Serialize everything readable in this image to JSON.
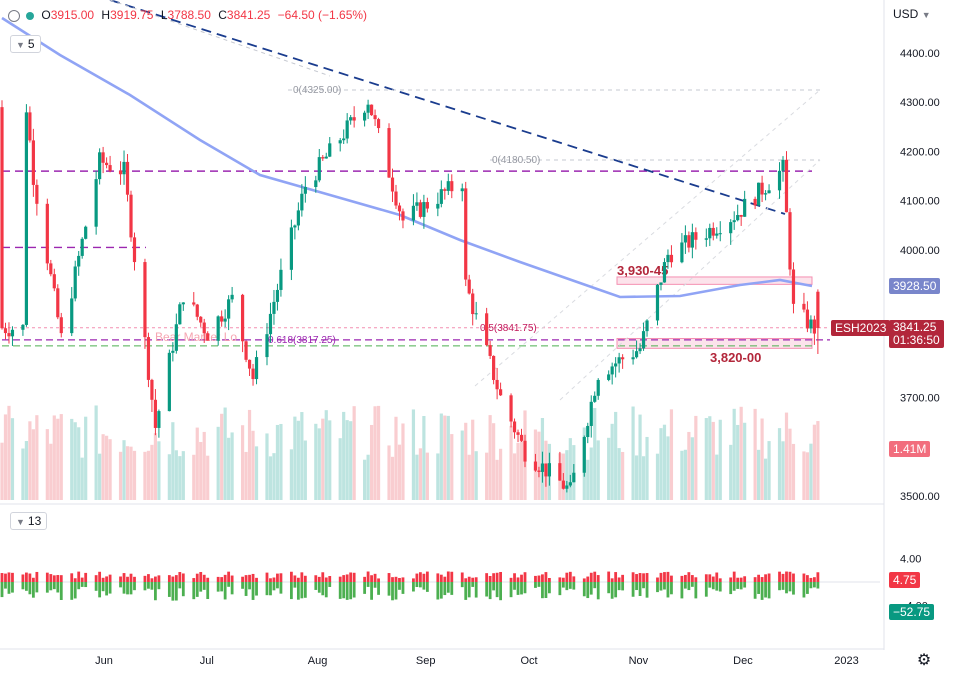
{
  "header": {
    "open_key": "O",
    "open": "3915.00",
    "high_key": "H",
    "high": "3919.75",
    "low_key": "L",
    "low": "3788.50",
    "close_key": "C",
    "close": "3841.25",
    "change": "−64.50 (−1.65%)",
    "main_pane_count": "5",
    "sub_pane_count": "13",
    "currency": "USD"
  },
  "annotations": {
    "upper_level": "3,930-45",
    "lower_level": "3,820-00",
    "fib_0_top": "0(4325.00)",
    "fib_0_mid": "0(4180.50)",
    "fib_05": "0.5(3841.75)",
    "fib_0618": "0.618(3817.25)",
    "bear_note": "Bear Market Lo",
    "colors": {
      "zone": "#f48fb1",
      "trend": "#1a3c8e",
      "purple": "#9c27b0",
      "ma": "#90a4f5",
      "up": "#089981",
      "down": "#f23645",
      "ticker": "#b2263a"
    }
  },
  "price_tags": {
    "ma_value": "3928.50",
    "ticker": "ESH2023",
    "last": "3841.25",
    "countdown": "01:36:50",
    "volume": "1.41M",
    "osc_up": "4.75",
    "osc_down": "−52.75"
  },
  "chart_data": {
    "type": "candlestick",
    "instrument": "ESH2023",
    "price_axis": {
      "ticks": [
        3500,
        3600,
        3700,
        3800,
        3900,
        4000,
        4100,
        4200,
        4300,
        4400
      ],
      "tick_labels": [
        "3500.00",
        "3600.00",
        "3700.00",
        "3800.00",
        "3900.00",
        "4000.00",
        "4100.00",
        "4200.00",
        "4300.00",
        "4400.00"
      ],
      "visible_tick_labels": [
        "3500.00",
        "3700.00",
        "4000.00",
        "4100.00",
        "4200.00",
        "4300.00",
        "4400.00"
      ],
      "range": [
        3480,
        4480
      ]
    },
    "time_axis": {
      "labels": [
        "Jun",
        "Jul",
        "Aug",
        "Sep",
        "Oct",
        "Nov",
        "Dec",
        "2023"
      ]
    },
    "osc_axis": {
      "tick_labels": [
        "4.00",
        "−4.00"
      ],
      "values": [
        4,
        -4
      ]
    },
    "levels": {
      "purple_dashed": [
        4160,
        4005,
        3841.75,
        3817.25
      ],
      "green_dashed": 3805,
      "zones": [
        [
          3930,
          3945
        ],
        [
          3800,
          3820
        ]
      ],
      "trendline": [
        [
          4490,
          4080
        ]
      ]
    },
    "ohlc_anchors": [
      [
        "2022-05-10",
        4290
      ],
      [
        "2022-05-12",
        4150
      ],
      [
        "2022-05-20",
        3820
      ],
      [
        "2022-05-31",
        4180
      ],
      [
        "2022-06-07",
        4160
      ],
      [
        "2022-06-16",
        3640
      ],
      [
        "2022-06-24",
        3910
      ],
      [
        "2022-07-01",
        3830
      ],
      [
        "2022-07-08",
        3900
      ],
      [
        "2022-07-14",
        3740
      ],
      [
        "2022-07-29",
        4130
      ],
      [
        "2022-08-16",
        4305
      ],
      [
        "2022-08-26",
        4060
      ],
      [
        "2022-09-12",
        4140
      ],
      [
        "2022-09-13",
        3930
      ],
      [
        "2022-09-23",
        3700
      ],
      [
        "2022-09-30",
        3590
      ],
      [
        "2022-10-13",
        3510
      ],
      [
        "2022-10-21",
        3750
      ],
      [
        "2022-11-02",
        3800
      ],
      [
        "2022-11-10",
        3990
      ],
      [
        "2022-11-30",
        4075
      ],
      [
        "2022-12-13",
        4165
      ],
      [
        "2022-12-16",
        3880
      ],
      [
        "2022-12-22",
        3840
      ],
      [
        "2022-12-23",
        3841.25
      ]
    ]
  }
}
